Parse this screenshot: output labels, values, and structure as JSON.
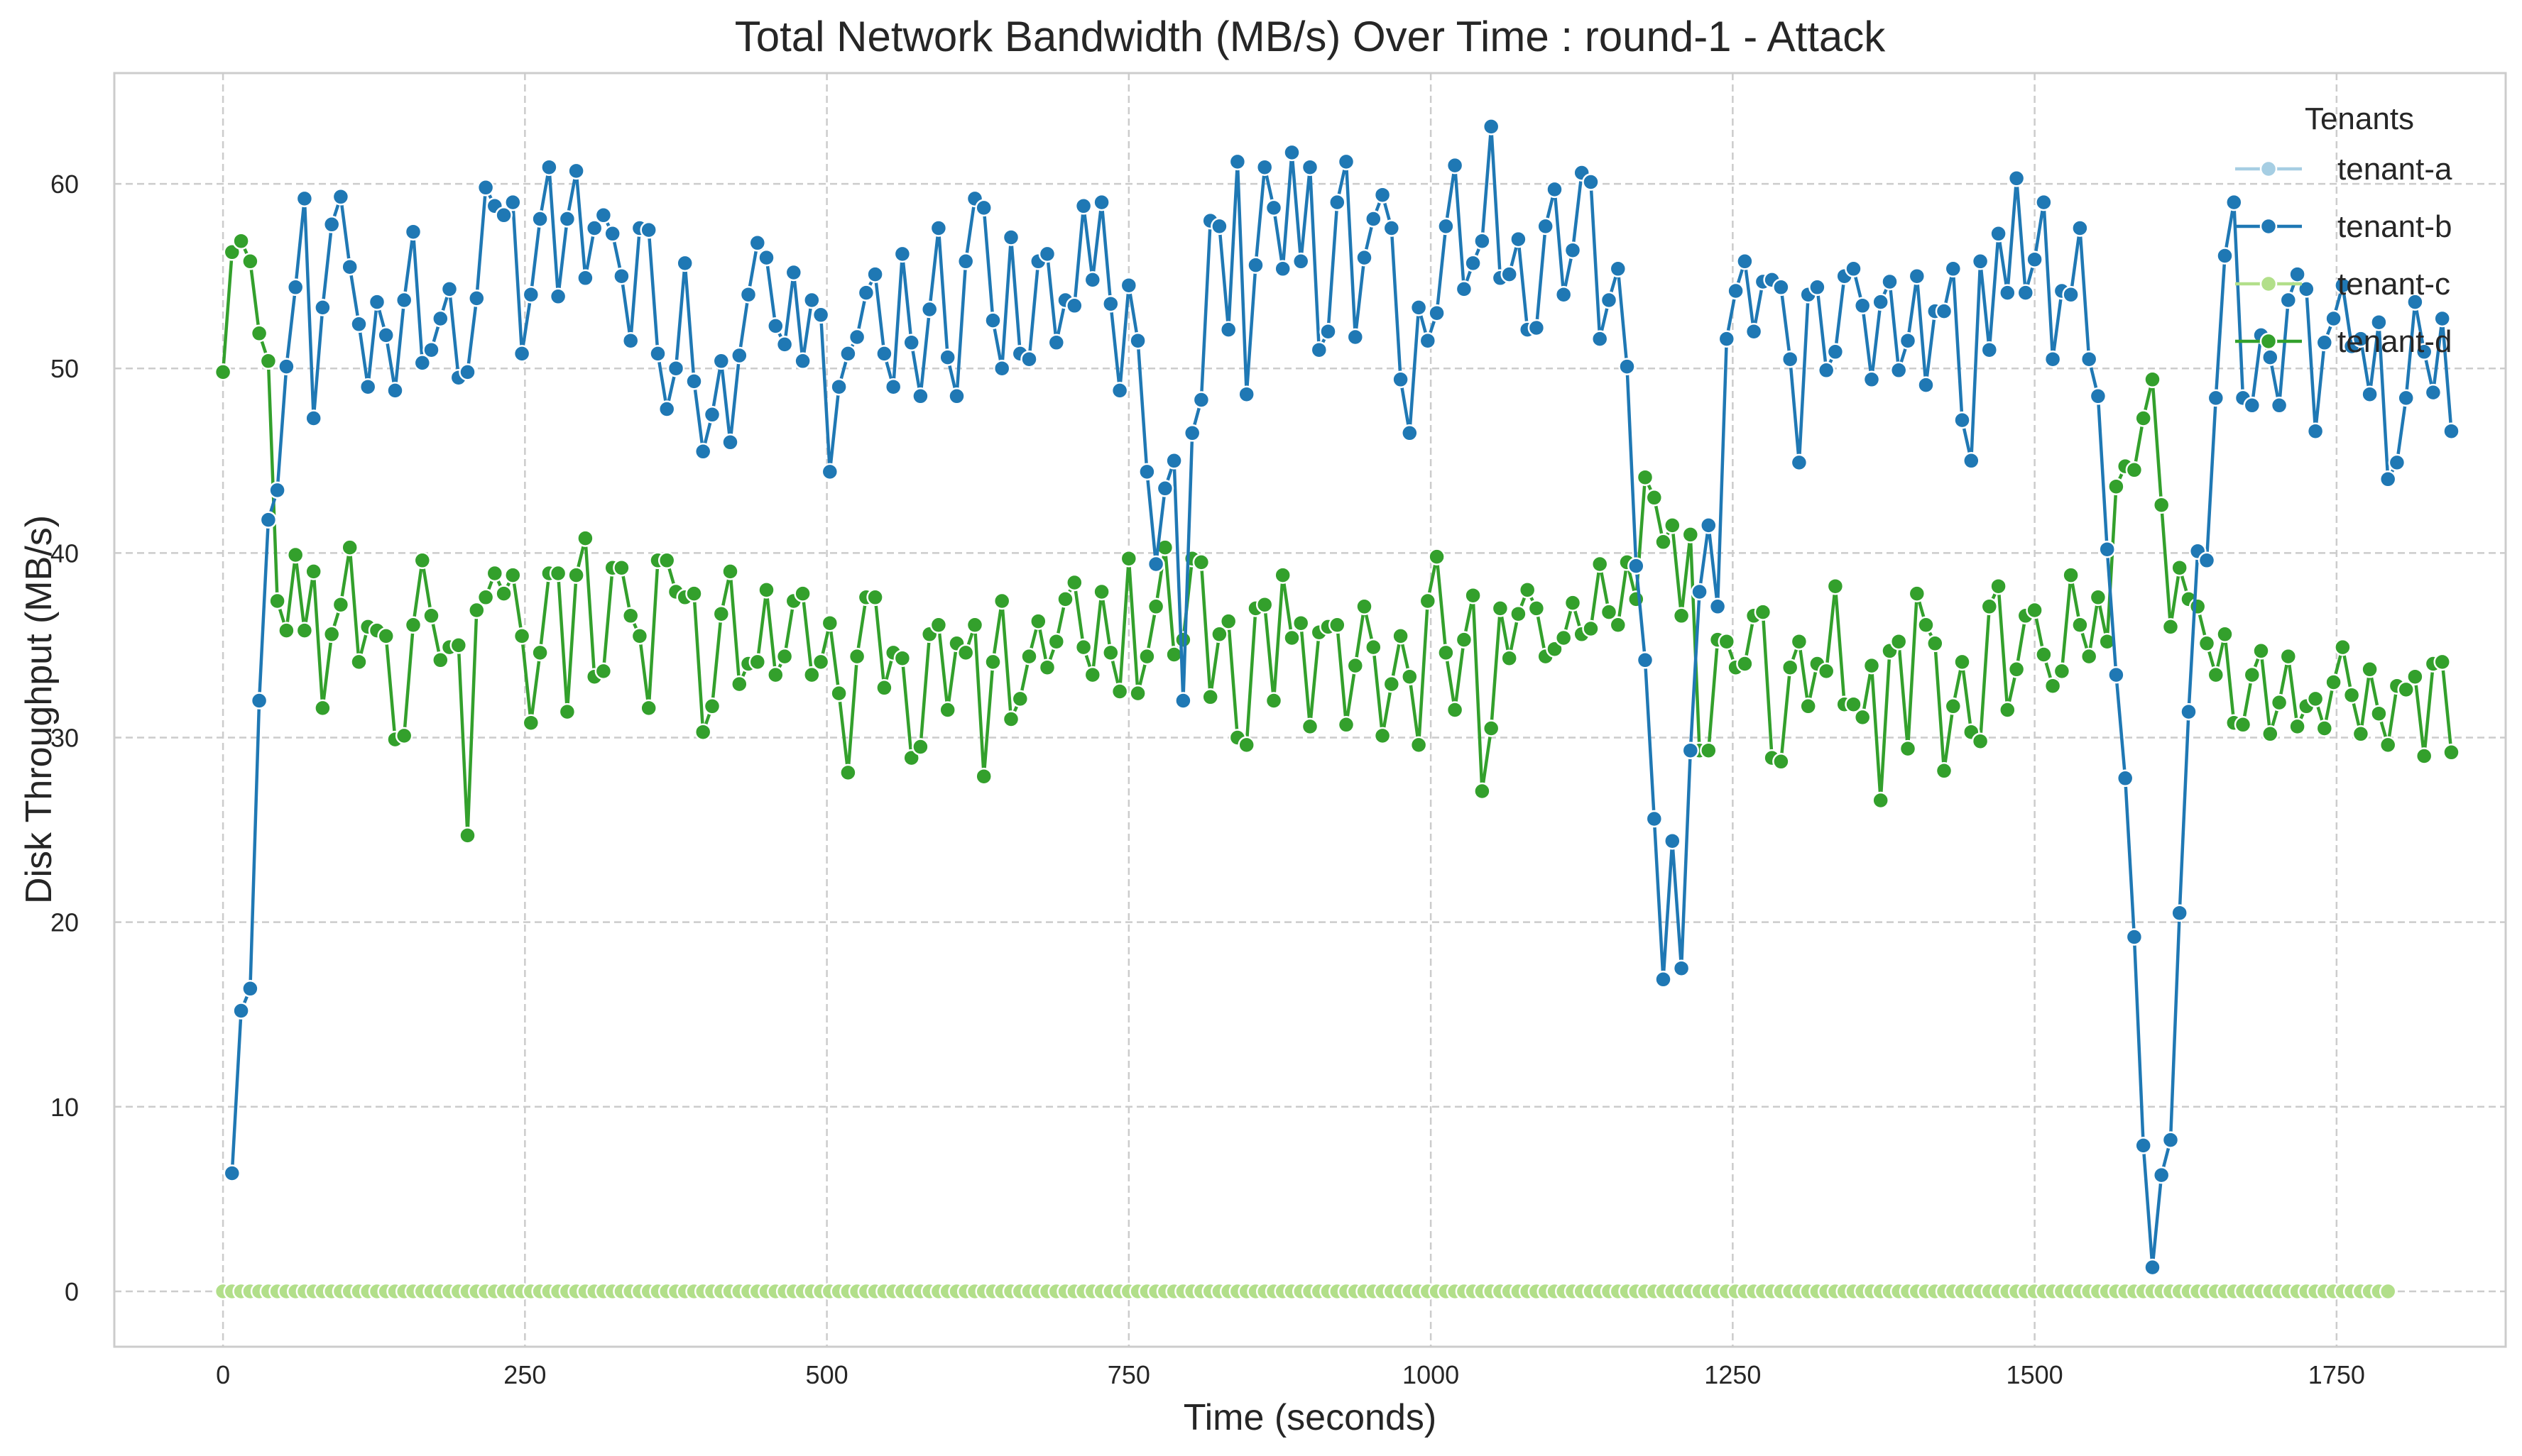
{
  "chart_data": {
    "type": "line",
    "title": "Total Network Bandwidth (MB/s) Over Time : round-1 - Attack",
    "xlabel": "Time (seconds)",
    "ylabel": "Disk Throughput (MB/s)",
    "xlim": [
      -90,
      1890
    ],
    "ylim": [
      -3,
      66
    ],
    "xticks": [
      0,
      250,
      500,
      750,
      1000,
      1250,
      1500,
      1750
    ],
    "yticks": [
      0,
      10,
      20,
      30,
      40,
      50,
      60
    ],
    "grid": true,
    "legend": {
      "title": "Tenants",
      "placement": "top-right"
    },
    "sample_interval": 7.5,
    "series": [
      {
        "name": "tenant-a",
        "color": "#a6cee3",
        "values": []
      },
      {
        "name": "tenant-b",
        "color": "#1f78b4",
        "values": [
          null,
          6.4,
          15.2,
          16.4,
          32.0,
          41.8,
          43.4,
          50.1,
          54.4,
          59.2,
          47.3,
          53.3,
          57.8,
          59.3,
          55.5,
          52.4,
          49.0,
          53.6,
          51.8,
          48.8,
          53.7,
          57.4,
          50.3,
          51.0,
          52.7,
          54.3,
          49.5,
          49.8,
          53.8,
          59.8,
          58.8,
          58.3,
          59.0,
          50.8,
          54.0,
          58.1,
          60.9,
          53.9,
          58.1,
          60.7,
          54.9,
          57.6,
          58.3,
          57.3,
          55.0,
          51.5,
          57.6,
          57.5,
          50.8,
          47.8,
          50.0,
          55.7,
          49.3,
          45.5,
          47.5,
          50.4,
          46.0,
          50.7,
          54.0,
          56.8,
          56.0,
          52.3,
          51.3,
          55.2,
          50.4,
          53.7,
          52.9,
          44.4,
          49.0,
          50.8,
          51.7,
          54.1,
          55.1,
          50.8,
          49.0,
          56.2,
          51.4,
          48.5,
          53.2,
          57.6,
          50.6,
          48.5,
          55.8,
          59.2,
          58.7,
          52.6,
          50.0,
          57.1,
          50.8,
          50.5,
          55.8,
          56.2,
          51.4,
          53.7,
          53.4,
          58.8,
          54.8,
          59.0,
          53.5,
          48.8,
          54.5,
          51.5,
          44.4,
          39.4,
          43.5,
          45.0,
          32.0,
          46.5,
          48.3,
          58.0,
          57.7,
          52.1,
          61.2,
          48.6,
          55.6,
          60.9,
          58.7,
          55.4,
          61.7,
          55.8,
          60.9,
          51.0,
          52.0,
          59.0,
          61.2,
          51.7,
          56.0,
          58.1,
          59.4,
          57.6,
          49.4,
          46.5,
          53.3,
          51.5,
          53.0,
          57.7,
          61.0,
          54.3,
          55.7,
          56.9,
          63.1,
          54.9,
          55.1,
          57.0,
          52.1,
          52.2,
          57.7,
          59.7,
          54.0,
          56.4,
          60.6,
          60.1,
          51.6,
          53.7,
          55.4,
          50.1,
          39.3,
          34.2,
          25.6,
          16.9,
          24.4,
          17.5,
          29.3,
          37.9,
          41.5,
          37.1,
          51.6,
          54.2,
          55.8,
          52.0,
          54.7,
          54.8,
          54.4,
          50.5,
          44.9,
          54.0,
          54.4,
          49.9,
          50.9,
          55.0,
          55.4,
          53.4,
          49.4,
          53.6,
          54.7,
          49.9,
          51.5,
          55.0,
          49.1,
          53.1,
          53.1,
          55.4,
          47.2,
          45.0,
          55.8,
          51.0,
          57.3,
          54.1,
          60.3,
          54.1,
          55.9,
          59.0,
          50.5,
          54.2,
          54.0,
          57.6,
          50.5,
          48.5,
          40.2,
          33.4,
          27.8,
          19.2,
          7.9,
          1.3,
          6.3,
          8.2,
          20.5,
          31.4,
          40.1,
          39.6,
          48.4,
          56.1,
          59.0,
          48.4,
          48.0,
          51.8,
          50.6,
          48.0,
          53.7,
          55.1,
          54.3,
          46.6,
          51.4,
          52.7,
          54.5,
          51.2,
          51.6,
          48.6,
          52.5,
          44.0,
          44.9,
          48.4,
          53.6,
          50.9,
          48.7,
          52.7,
          46.6
        ]
      },
      {
        "name": "tenant-c",
        "color": "#b2df8a",
        "constant": 0,
        "count": 240
      },
      {
        "name": "tenant-d",
        "color": "#33a02c",
        "values": [
          49.8,
          56.3,
          56.9,
          55.8,
          51.9,
          50.4,
          37.4,
          35.8,
          39.9,
          35.8,
          39.0,
          31.6,
          35.6,
          37.2,
          40.3,
          34.1,
          36.0,
          35.8,
          35.5,
          29.9,
          30.1,
          36.1,
          39.6,
          36.6,
          34.2,
          34.9,
          35.0,
          24.7,
          36.9,
          37.6,
          38.9,
          37.8,
          38.8,
          35.5,
          30.8,
          34.6,
          38.9,
          38.9,
          31.4,
          38.8,
          40.8,
          33.3,
          33.6,
          39.2,
          39.2,
          36.6,
          35.5,
          31.6,
          39.6,
          39.6,
          37.9,
          37.6,
          37.8,
          30.3,
          31.7,
          36.7,
          39.0,
          32.9,
          34.0,
          34.1,
          38.0,
          33.4,
          34.4,
          37.4,
          37.8,
          33.4,
          34.1,
          36.2,
          32.4,
          28.1,
          34.4,
          37.6,
          37.6,
          32.7,
          34.6,
          34.3,
          28.9,
          29.5,
          35.6,
          36.1,
          31.5,
          35.1,
          34.6,
          36.1,
          27.9,
          34.1,
          37.4,
          31.0,
          32.1,
          34.4,
          36.3,
          33.8,
          35.2,
          37.5,
          38.4,
          34.9,
          33.4,
          37.9,
          34.6,
          32.5,
          39.7,
          32.4,
          34.4,
          37.1,
          40.3,
          34.5,
          35.3,
          39.7,
          39.5,
          32.2,
          35.6,
          36.3,
          30.0,
          29.6,
          37.0,
          37.2,
          32.0,
          38.8,
          35.4,
          36.2,
          30.6,
          35.7,
          36.0,
          36.1,
          30.7,
          33.9,
          37.1,
          34.9,
          30.1,
          32.9,
          35.5,
          33.3,
          29.6,
          37.4,
          39.8,
          34.6,
          31.5,
          35.3,
          37.7,
          27.1,
          30.5,
          37.0,
          34.3,
          36.7,
          38.0,
          37.0,
          34.4,
          34.8,
          35.4,
          37.3,
          35.6,
          35.9,
          39.4,
          36.8,
          36.1,
          39.5,
          37.5,
          44.1,
          43.0,
          40.6,
          41.5,
          36.6,
          41.0,
          29.3,
          29.3,
          35.3,
          35.2,
          33.8,
          34.0,
          36.6,
          36.8,
          28.9,
          28.7,
          33.8,
          35.2,
          31.7,
          34.0,
          33.6,
          38.2,
          31.8,
          31.8,
          31.1,
          33.9,
          26.6,
          34.7,
          35.2,
          29.4,
          37.8,
          36.1,
          35.1,
          28.2,
          31.7,
          34.1,
          30.3,
          29.8,
          37.1,
          38.2,
          31.5,
          33.7,
          36.6,
          36.9,
          34.5,
          32.8,
          33.6,
          38.8,
          36.1,
          34.4,
          37.6,
          35.2,
          43.6,
          44.7,
          44.5,
          47.3,
          49.4,
          42.6,
          36.0,
          39.2,
          37.5,
          37.1,
          35.1,
          33.4,
          35.6,
          30.8,
          30.7,
          33.4,
          34.7,
          30.2,
          31.9,
          34.4,
          30.6,
          31.7,
          32.1,
          30.5,
          33.0,
          34.9,
          32.3,
          30.2,
          33.7,
          31.3,
          29.6,
          32.8,
          32.6,
          33.3,
          29.0,
          34.0,
          34.1,
          29.2
        ]
      }
    ]
  }
}
